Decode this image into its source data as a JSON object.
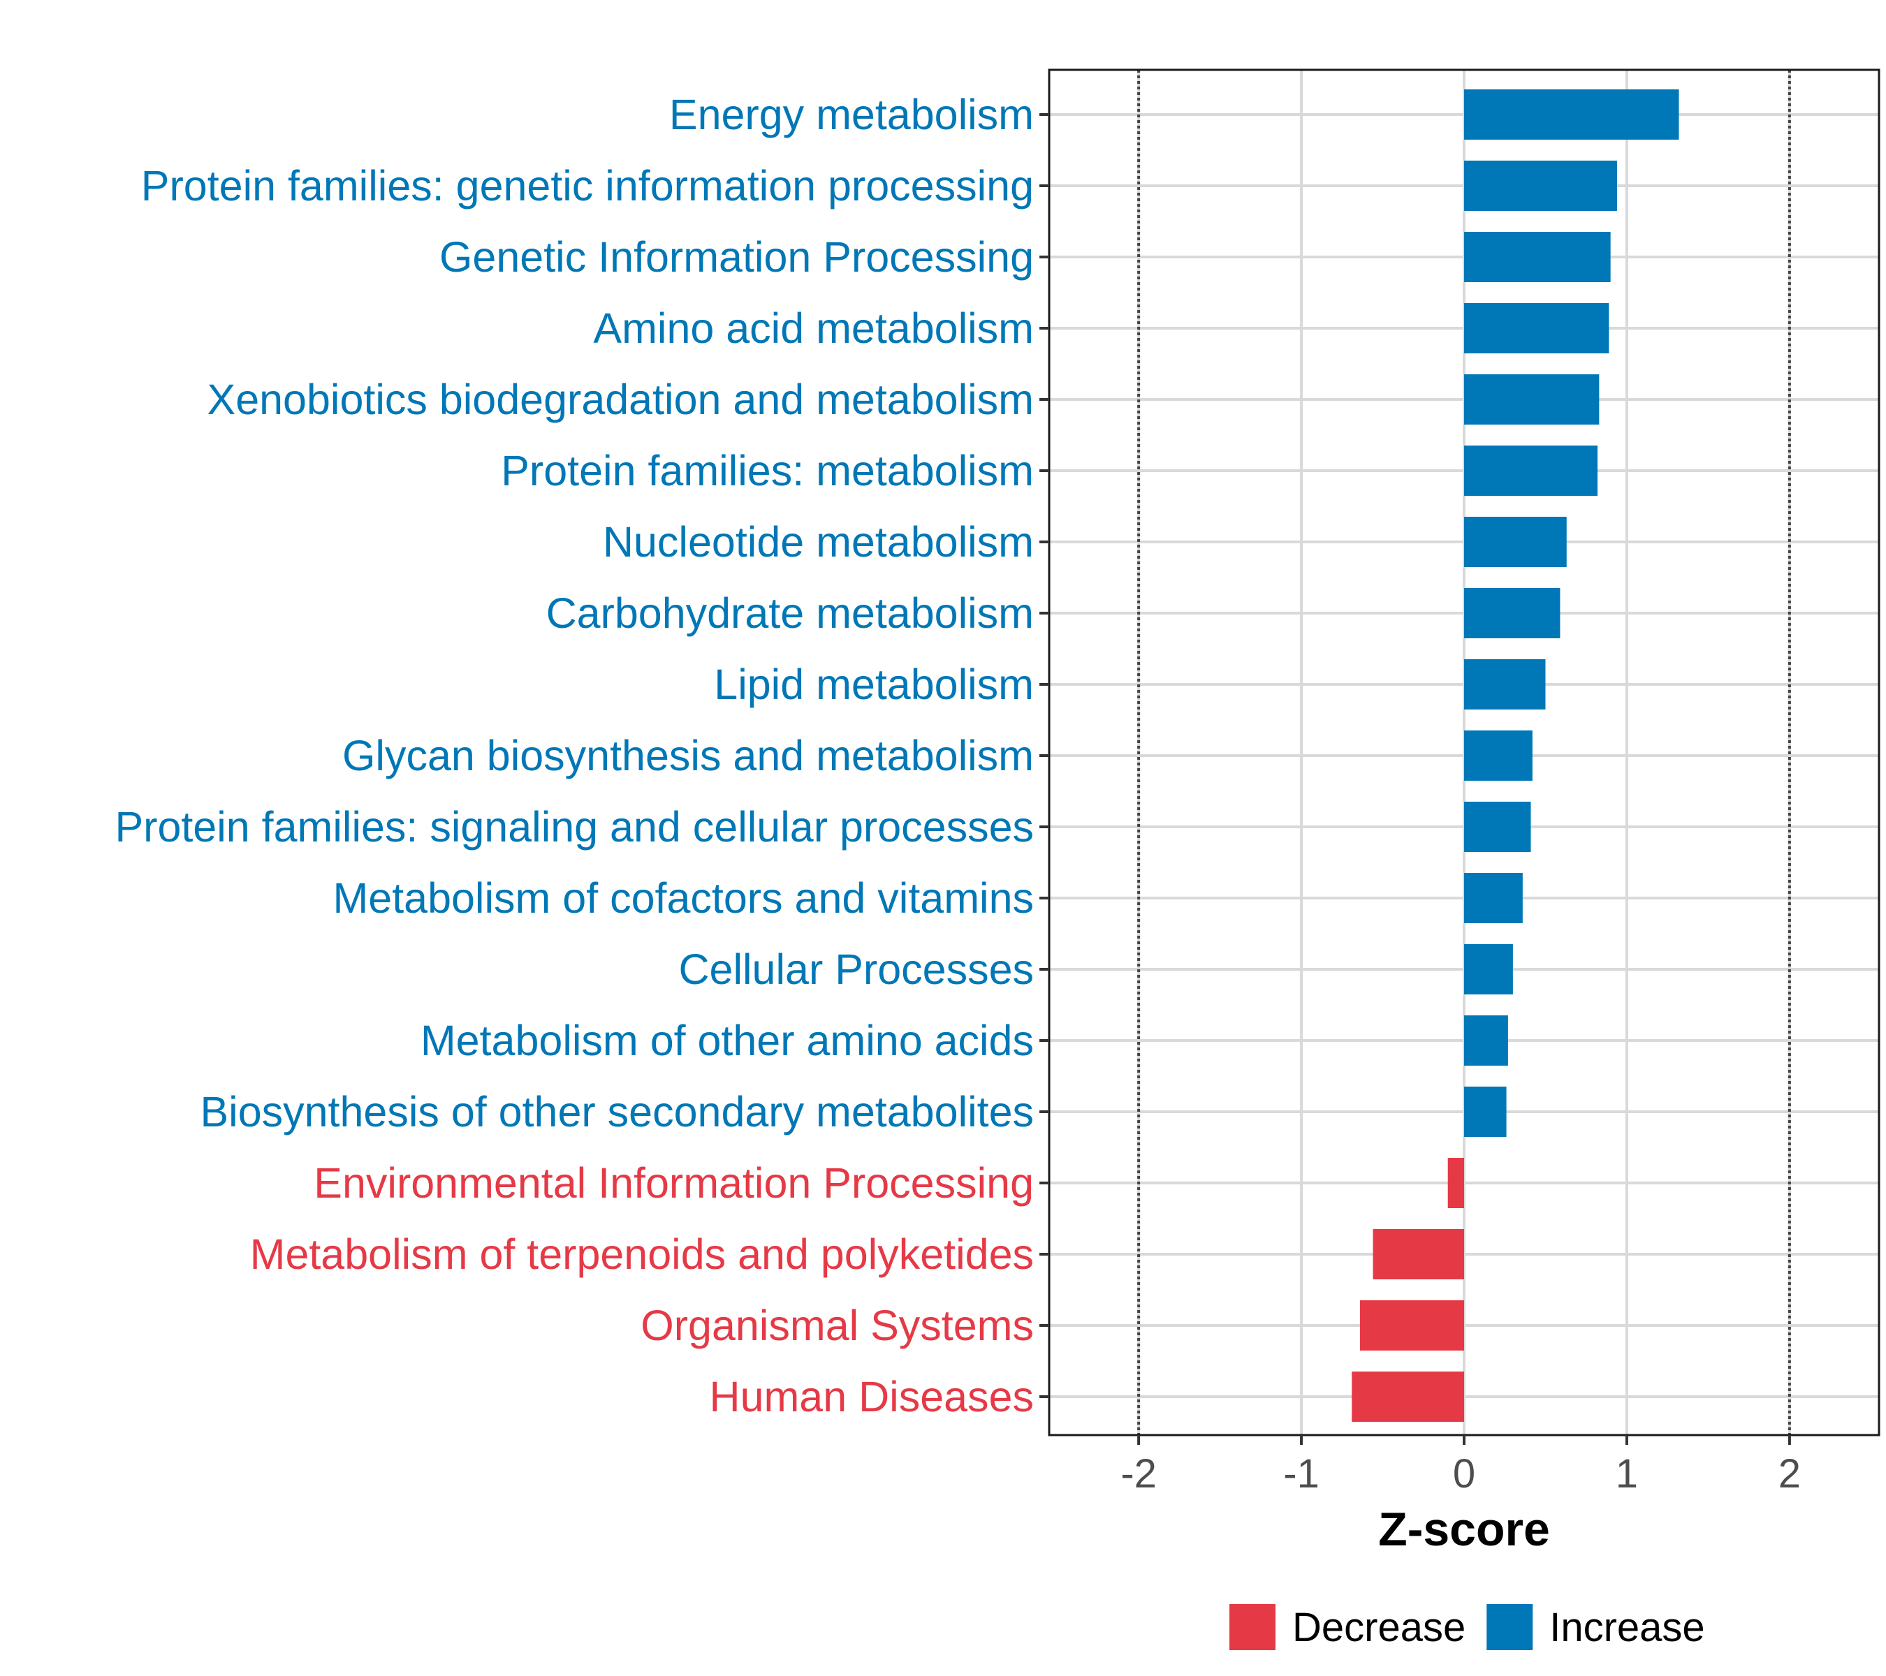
{
  "chart_data": {
    "type": "bar",
    "orientation": "horizontal",
    "categories": [
      "Energy metabolism",
      "Protein families: genetic information processing",
      "Genetic Information Processing",
      "Amino acid metabolism",
      "Xenobiotics biodegradation and metabolism",
      "Protein families: metabolism",
      "Nucleotide metabolism",
      "Carbohydrate metabolism",
      "Lipid metabolism",
      "Glycan biosynthesis and metabolism",
      "Protein families: signaling and cellular processes",
      "Metabolism of cofactors and vitamins",
      "Cellular Processes",
      "Metabolism of other amino acids",
      "Biosynthesis of other secondary metabolites",
      "Environmental Information Processing",
      "Metabolism of terpenoids and polyketides",
      "Organismal Systems",
      "Human Diseases"
    ],
    "values": [
      1.32,
      0.94,
      0.9,
      0.89,
      0.83,
      0.82,
      0.63,
      0.59,
      0.5,
      0.42,
      0.41,
      0.36,
      0.3,
      0.27,
      0.26,
      -0.1,
      -0.56,
      -0.64,
      -0.69
    ],
    "groups": [
      "Increase",
      "Increase",
      "Increase",
      "Increase",
      "Increase",
      "Increase",
      "Increase",
      "Increase",
      "Increase",
      "Increase",
      "Increase",
      "Increase",
      "Increase",
      "Increase",
      "Increase",
      "Decrease",
      "Decrease",
      "Decrease",
      "Decrease"
    ],
    "xlabel": "Z-score",
    "xlim": [
      -2.55,
      2.55
    ],
    "xticks": [
      -2,
      -1,
      0,
      1,
      2
    ],
    "xtick_labels": [
      "-2",
      "-1",
      "0",
      "1",
      "2"
    ],
    "reference_lines": [
      -2,
      2
    ],
    "legend": {
      "position": "bottom",
      "items": [
        {
          "label": "Decrease",
          "color": "#E63946"
        },
        {
          "label": "Increase",
          "color": "#0077B6"
        }
      ]
    },
    "colors": {
      "Increase": "#0077B6",
      "Decrease": "#E63946"
    },
    "grid": true
  }
}
